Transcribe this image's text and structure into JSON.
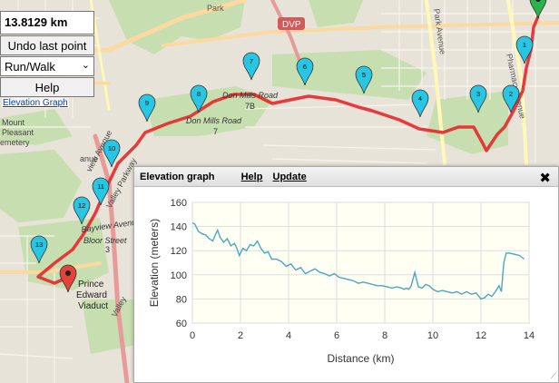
{
  "map": {
    "labels": {
      "park": "Park",
      "dvp_badge": "DVP",
      "don_mills_7b": "Don Mills Road",
      "route_7b": "7B",
      "don_mills_7": "Don Mills Road",
      "route_7": "7",
      "mount_pleasant_1": "Mount",
      "mount_pleasant_2": "Pleasant",
      "mount_pleasant_3": "emetery",
      "bayview": "Bayview Avenue",
      "bloor": "Bloor Street",
      "route_3": "3",
      "viaduct_1": "Prince",
      "viaduct_2": "Edward",
      "viaduct_3": "Viaduct",
      "park_avenue": "Park Avenue",
      "pharmacy": "Pharmacy Avenue",
      "valley_parkway": "Valley Parkway",
      "view_avenue": "view Avenue",
      "anue": "anue",
      "valley": "Valley"
    },
    "markers": [
      "1",
      "2",
      "3",
      "4",
      "5",
      "6",
      "7",
      "8",
      "9",
      "10",
      "11",
      "12",
      "13"
    ]
  },
  "controls": {
    "distance": "13.8129 km",
    "undo_label": "Undo last point",
    "mode_value": "Run/Walk",
    "help_label": "Help",
    "elevation_link": "Elevation Graph"
  },
  "panel": {
    "title": "Elevation graph",
    "help_link": "Help",
    "update_link": "Update",
    "close_glyph": "✖"
  },
  "colors": {
    "route": "#e8262c",
    "marker_cyan": "#29c6e3",
    "marker_green": "#2bb24c",
    "marker_red": "#e4433b",
    "chart_line": "#4aa7bf",
    "chart_bg": "#fffff4"
  },
  "chart_data": {
    "type": "line",
    "title": "",
    "xlabel": "Distance (km)",
    "ylabel": "Elevation (meters)",
    "xlim": [
      0,
      14
    ],
    "ylim": [
      60,
      160
    ],
    "xticks": [
      0,
      2,
      4,
      6,
      8,
      10,
      12,
      14
    ],
    "yticks": [
      60,
      80,
      100,
      120,
      140,
      160
    ],
    "grid": true,
    "series": [
      {
        "x": [
          0,
          0.1,
          0.25,
          0.4,
          0.55,
          0.7,
          0.85,
          0.95,
          1.05,
          1.15,
          1.3,
          1.45,
          1.6,
          1.75,
          1.85,
          1.95,
          2.1,
          2.25,
          2.4,
          2.55,
          2.7,
          2.85,
          3.0,
          3.15,
          3.3,
          3.5,
          3.7,
          3.9,
          4.1,
          4.3,
          4.5,
          4.7,
          4.9,
          5.1,
          5.3,
          5.5,
          5.7,
          5.9,
          6.1,
          6.3,
          6.5,
          6.7,
          6.9,
          7.1,
          7.3,
          7.5,
          7.7,
          7.9,
          8.1,
          8.3,
          8.5,
          8.7,
          8.8,
          8.9,
          9.0,
          9.1,
          9.25,
          9.4,
          9.55,
          9.7,
          9.85,
          10.0,
          10.2,
          10.4,
          10.6,
          10.8,
          11.0,
          11.2,
          11.4,
          11.6,
          11.8,
          12.0,
          12.15,
          12.3,
          12.45,
          12.6,
          12.75,
          12.85,
          12.95,
          13.05,
          13.2,
          13.4,
          13.6,
          13.8
        ],
        "y": [
          143,
          142,
          136,
          134,
          133,
          130,
          128,
          133,
          137,
          131,
          127,
          130,
          124,
          126,
          122,
          116,
          122,
          120,
          125,
          124,
          128,
          122,
          118,
          119,
          113,
          113,
          111,
          107,
          109,
          104,
          106,
          101,
          103,
          105,
          102,
          101,
          99,
          101,
          98,
          97,
          96,
          95,
          93,
          94,
          93,
          92,
          91,
          91,
          90,
          89,
          90,
          89,
          88,
          89,
          88,
          91,
          102,
          90,
          89,
          92,
          91,
          88,
          86,
          87,
          86,
          85,
          86,
          84,
          86,
          84,
          85,
          80,
          81,
          84,
          82,
          86,
          91,
          86,
          110,
          118,
          118,
          117,
          116,
          113
        ]
      }
    ]
  }
}
